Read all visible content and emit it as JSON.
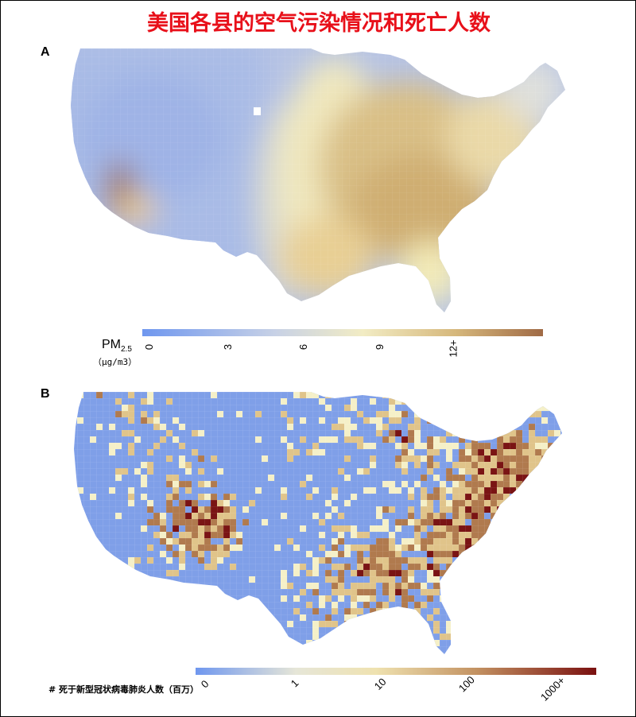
{
  "title": "美国各县的空气污染情况和死亡人数",
  "panel_a": {
    "label": "A",
    "legend_title": "PM",
    "legend_subscript": "2.5",
    "legend_unit": "（μg/m3）",
    "ticks": [
      "0",
      "3",
      "6",
      "9",
      "12+"
    ],
    "colors": [
      "#6f97ef",
      "#b9c8e6",
      "#f2ecc4",
      "#d6b87c",
      "#a06a45"
    ]
  },
  "panel_b": {
    "label": "B",
    "legend_title": "# 死于新型冠状病毒肺炎人数（百万）",
    "ticks": [
      "0",
      "1",
      "10",
      "100",
      "1000+"
    ],
    "colors": [
      "#6f97ef",
      "#f5f0c8",
      "#e0c48a",
      "#b07a4e",
      "#7a1414"
    ]
  }
}
